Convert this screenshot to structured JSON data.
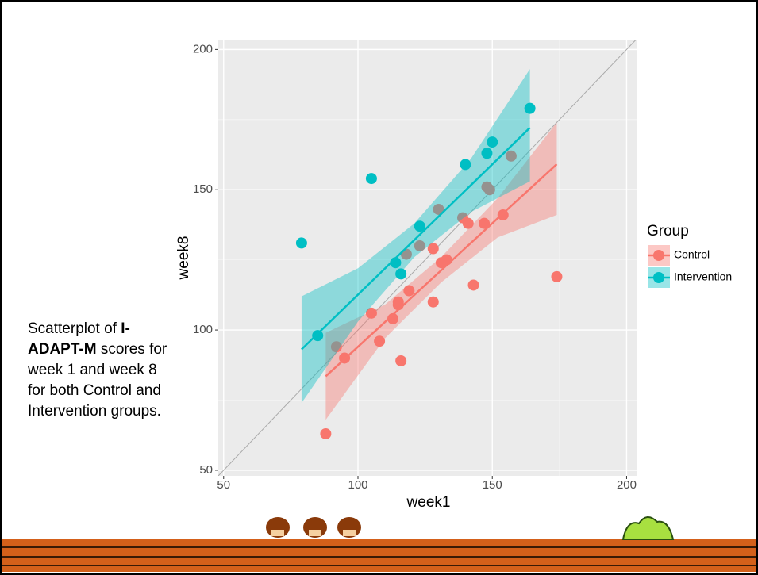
{
  "slide": {
    "caption": {
      "before": "Scatterplot of ",
      "bold": "I-ADAPT-M",
      "after": " scores for week 1 and week 8 for both Control and Intervention groups."
    }
  },
  "chart_data": {
    "type": "scatter",
    "x_label": "week1",
    "y_label": "week8",
    "legend_title": "Group",
    "xlim": [
      48,
      204
    ],
    "ylim": [
      48,
      203.5
    ],
    "xticks": [
      50,
      100,
      150,
      200
    ],
    "yticks": [
      50,
      100,
      150,
      200
    ],
    "grid": true,
    "series": [
      {
        "name": "Control",
        "color": "#F8766D",
        "x": [
          88,
          116,
          115,
          115,
          119,
          128,
          131,
          133,
          143,
          147,
          154,
          174,
          92,
          95,
          105,
          108,
          113,
          118,
          123,
          128,
          130,
          139,
          141,
          148,
          149,
          157
        ],
        "values": [
          63,
          89,
          109,
          110,
          114,
          110,
          124,
          125,
          116,
          138,
          141,
          119,
          94,
          90,
          106,
          96,
          104,
          127,
          130,
          129,
          143,
          140,
          138,
          151,
          150,
          162
        ],
        "fit": {
          "x": [
            88,
            110,
            131,
            152,
            174
          ],
          "values": [
            83.5,
            102.8,
            121.3,
            139.8,
            159.1
          ],
          "lower": [
            68,
            97,
            117,
            133,
            141
          ],
          "upper": [
            99,
            109,
            126,
            147,
            174
          ]
        }
      },
      {
        "name": "Intervention",
        "color": "#00BFC4",
        "x": [
          79,
          85,
          105,
          114,
          116,
          123,
          140,
          148,
          150,
          164
        ],
        "values": [
          131,
          98,
          154,
          124,
          120,
          137,
          159,
          163,
          167,
          179
        ],
        "fit": {
          "x": [
            79,
            100,
            121,
            142,
            164
          ],
          "values": [
            93.1,
            112.6,
            132.1,
            151.6,
            172.1
          ],
          "lower": [
            74,
            103,
            126,
            142,
            153
          ],
          "upper": [
            112,
            122,
            138,
            161,
            193
          ]
        }
      }
    ]
  }
}
